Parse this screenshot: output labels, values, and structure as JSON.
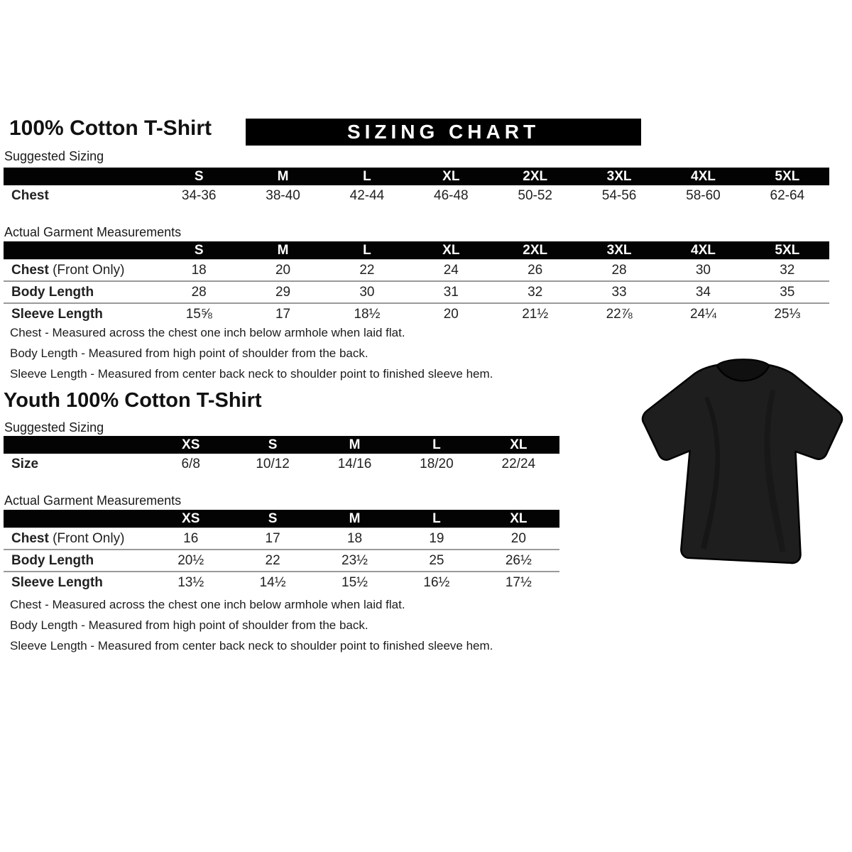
{
  "page": {
    "title": "100% Cotton T-Shirt",
    "banner": "SIZING CHART",
    "youth_title": "Youth 100% Cotton T-Shirt"
  },
  "adult": {
    "suggested": {
      "label": "Suggested Sizing",
      "columns": [
        "S",
        "M",
        "L",
        "XL",
        "2XL",
        "3XL",
        "4XL",
        "5XL"
      ],
      "rows": [
        {
          "label": "Chest",
          "suffix": "",
          "values": [
            "34-36",
            "38-40",
            "42-44",
            "46-48",
            "50-52",
            "54-56",
            "58-60",
            "62-64"
          ]
        }
      ]
    },
    "measurements": {
      "label": "Actual Garment Measurements",
      "columns": [
        "S",
        "M",
        "L",
        "XL",
        "2XL",
        "3XL",
        "4XL",
        "5XL"
      ],
      "rows": [
        {
          "label": "Chest",
          "suffix": " (Front Only)",
          "values": [
            "18",
            "20",
            "22",
            "24",
            "26",
            "28",
            "30",
            "32"
          ]
        },
        {
          "label": "Body Length",
          "suffix": "",
          "values": [
            "28",
            "29",
            "30",
            "31",
            "32",
            "33",
            "34",
            "35"
          ]
        },
        {
          "label": "Sleeve Length",
          "suffix": "",
          "values": [
            "15⅝",
            "17",
            "18½",
            "20",
            "21½",
            "22⅞",
            "24¼",
            "25⅓"
          ]
        }
      ]
    },
    "notes": [
      "Chest - Measured across the chest one inch below armhole when laid flat.",
      "Body Length - Measured from high point of shoulder from the back.",
      "Sleeve Length - Measured from center back neck to shoulder point to finished sleeve hem."
    ]
  },
  "youth": {
    "suggested": {
      "label": "Suggested Sizing",
      "columns": [
        "XS",
        "S",
        "M",
        "L",
        "XL"
      ],
      "rows": [
        {
          "label": "Size",
          "suffix": "",
          "values": [
            "6/8",
            "10/12",
            "14/16",
            "18/20",
            "22/24"
          ]
        }
      ]
    },
    "measurements": {
      "label": "Actual Garment Measurements",
      "columns": [
        "XS",
        "S",
        "M",
        "L",
        "XL"
      ],
      "rows": [
        {
          "label": "Chest",
          "suffix": " (Front Only)",
          "values": [
            "16",
            "17",
            "18",
            "19",
            "20"
          ]
        },
        {
          "label": "Body Length",
          "suffix": "",
          "values": [
            "20½",
            "22",
            "23½",
            "25",
            "26½"
          ]
        },
        {
          "label": "Sleeve Length",
          "suffix": "",
          "values": [
            "13½",
            "14½",
            "15½",
            "16½",
            "17½"
          ]
        }
      ]
    },
    "notes": [
      "Chest - Measured across the chest one inch below armhole when laid flat.",
      "Body Length - Measured from high point of shoulder from the back.",
      "Sleeve Length - Measured from center back neck to shoulder point to finished sleeve hem."
    ]
  },
  "tshirt": {
    "label": "black t-shirt product photo",
    "body_color": "#1e1e1e",
    "collar_color": "#101010",
    "outline_color": "#000000"
  }
}
